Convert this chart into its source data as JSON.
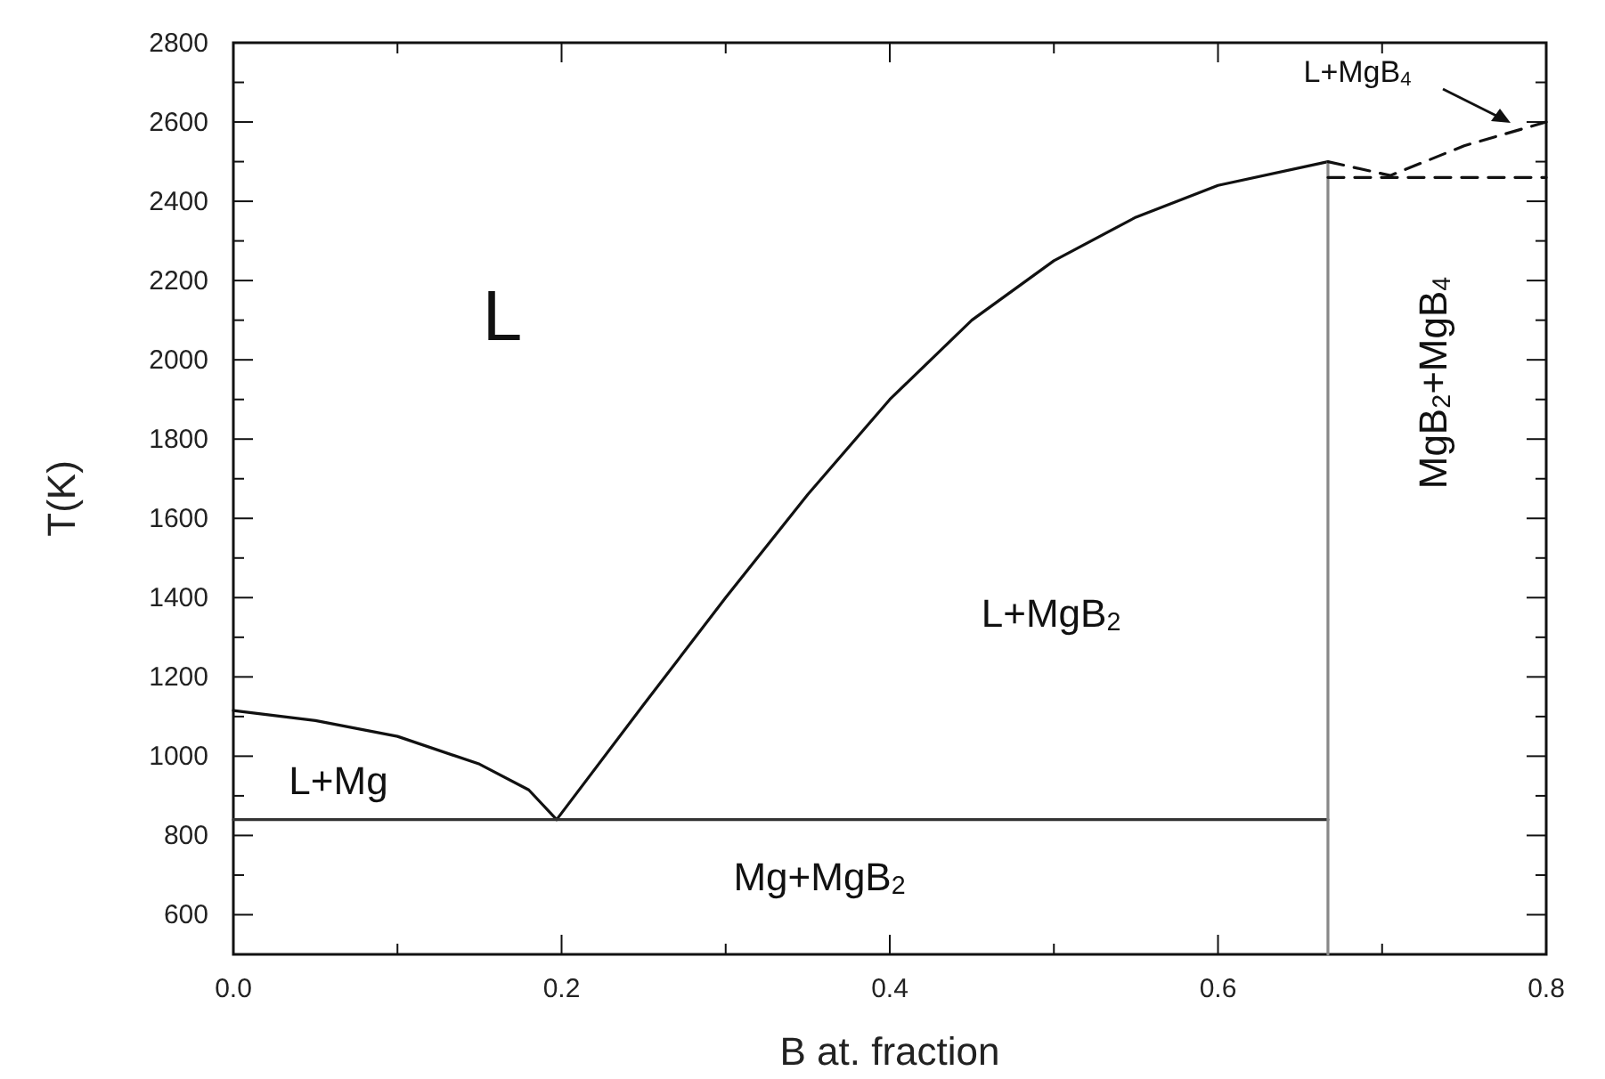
{
  "chart_data": {
    "type": "line",
    "xlabel": "B at. fraction",
    "ylabel": "T(K)",
    "xlim": [
      0,
      0.8
    ],
    "ylim": [
      500,
      2800
    ],
    "xticks": [
      {
        "value": 0,
        "label": "0.0"
      },
      {
        "value": 0.1,
        "label": null
      },
      {
        "value": 0.2,
        "label": "0.2"
      },
      {
        "value": 0.3,
        "label": null
      },
      {
        "value": 0.4,
        "label": "0.4"
      },
      {
        "value": 0.5,
        "label": null
      },
      {
        "value": 0.6,
        "label": "0.6"
      },
      {
        "value": 0.7,
        "label": null
      },
      {
        "value": 0.8,
        "label": "0.8"
      }
    ],
    "yticks": [
      {
        "value": 500,
        "label": null
      },
      600,
      {
        "value": 700,
        "label": null
      },
      800,
      {
        "value": 900,
        "label": null
      },
      1000,
      {
        "value": 1100,
        "label": null
      },
      1200,
      {
        "value": 1300,
        "label": null
      },
      1400,
      {
        "value": 1500,
        "label": null
      },
      1600,
      {
        "value": 1700,
        "label": null
      },
      1800,
      {
        "value": 1900,
        "label": null
      },
      2000,
      {
        "value": 2100,
        "label": null
      },
      2200,
      {
        "value": 2300,
        "label": null
      },
      2400,
      {
        "value": 2500,
        "label": null
      },
      2600,
      {
        "value": 2700,
        "label": null
      },
      2800
    ],
    "grid": false,
    "marker": "none",
    "series": [
      {
        "color": "#111111",
        "x": [
          0,
          0.05,
          0.1,
          0.15,
          0.18,
          0.197
        ],
        "values": [
          1115,
          1090,
          1050,
          980,
          915,
          840
        ]
      },
      {
        "color": "#111111",
        "x": [
          0.197,
          0.25,
          0.3,
          0.35,
          0.4,
          0.45,
          0.5,
          0.55,
          0.6,
          0.667
        ],
        "values": [
          840,
          1130,
          1400,
          1660,
          1900,
          2100,
          2250,
          2360,
          2440,
          2500
        ]
      },
      {
        "color": "#333333",
        "x": [
          0,
          0.667
        ],
        "values": [
          840,
          840
        ]
      },
      {
        "color": "#888888",
        "x": [
          0.667,
          0.667
        ],
        "values": [
          500,
          2500
        ]
      },
      {
        "color": "#111111",
        "line_style": "dashed",
        "x": [
          0.667,
          0.8
        ],
        "values": [
          2460,
          2460
        ]
      },
      {
        "color": "#111111",
        "line_style": "dashed",
        "x": [
          0.667,
          0.705,
          0.75,
          0.8
        ],
        "values": [
          2500,
          2465,
          2540,
          2600
        ]
      }
    ],
    "annotations": [
      "L",
      "L+Mg",
      "Mg+MgB$_{2}$",
      "L+MgB$_{2}$",
      "MgB$_{2}$+MgB$_{4}$",
      "L+MgB$_{4}$"
    ]
  }
}
